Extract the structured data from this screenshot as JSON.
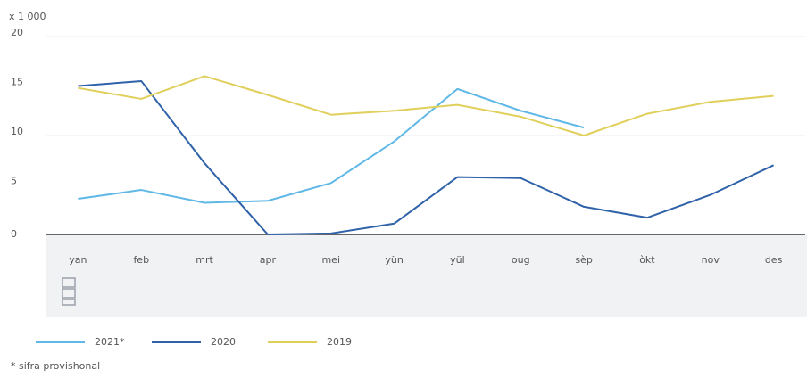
{
  "chart_data": {
    "type": "line",
    "y_unit_label": "x 1 000",
    "categories": [
      "yan",
      "feb",
      "mrt",
      "apr",
      "mei",
      "yün",
      "yül",
      "oug",
      "sèp",
      "òkt",
      "nov",
      "des"
    ],
    "series": [
      {
        "name": "2021*",
        "color": "#5fb8e6",
        "values": [
          3.6,
          4.5,
          3.2,
          3.4,
          5.2,
          9.4,
          14.7,
          12.5,
          10.8,
          null,
          null,
          null
        ]
      },
      {
        "name": "2020",
        "color": "#2f62a8",
        "values": [
          15.0,
          15.5,
          7.2,
          0,
          0.1,
          1.1,
          5.8,
          5.7,
          2.8,
          1.7,
          4.0,
          7.0
        ]
      },
      {
        "name": "2019",
        "color": "#e1cf5c",
        "values": [
          14.8,
          13.7,
          16.0,
          14.1,
          12.1,
          12.5,
          13.1,
          11.9,
          10.0,
          12.2,
          13.4,
          14.0
        ]
      }
    ],
    "ylim": [
      0,
      20
    ],
    "yticks": [
      0,
      5,
      10,
      15,
      20
    ],
    "grid": true,
    "footnote": "* sifra provishonal"
  }
}
